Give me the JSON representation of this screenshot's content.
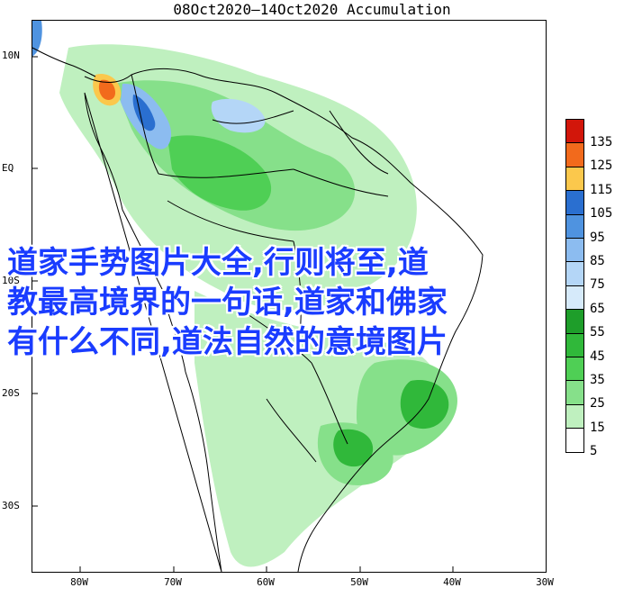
{
  "map": {
    "title": "08Oct2020—14Oct2020 Accumulation",
    "lat_labels": [
      "10N",
      "EQ",
      "10S",
      "20S",
      "30S"
    ],
    "lon_labels": [
      "80W",
      "70W",
      "60W",
      "50W",
      "40W",
      "30W"
    ],
    "legend": [
      {
        "label": "135",
        "color": "#d2160a"
      },
      {
        "label": "125",
        "color": "#f26a1c"
      },
      {
        "label": "115",
        "color": "#fbc84c"
      },
      {
        "label": "105",
        "color": "#2a6fd0"
      },
      {
        "label": "95",
        "color": "#4f93e0"
      },
      {
        "label": "85",
        "color": "#8cbcf0"
      },
      {
        "label": "75",
        "color": "#b4d6f7"
      },
      {
        "label": "65",
        "color": "#d6eafa"
      },
      {
        "label": "55",
        "color": "#1e9e2a"
      },
      {
        "label": "45",
        "color": "#30b83a"
      },
      {
        "label": "35",
        "color": "#4fcf55"
      },
      {
        "label": "25",
        "color": "#86e08a"
      },
      {
        "label": "15",
        "color": "#bff0bf"
      },
      {
        "label": "5",
        "color": "#ffffff"
      }
    ]
  },
  "overlay": {
    "line1": "道家手势图片大全,行则将至,道",
    "line2": "教最高境界的一句话,道家和佛家",
    "line3": "有什么不同,道法自然的意境图片"
  }
}
